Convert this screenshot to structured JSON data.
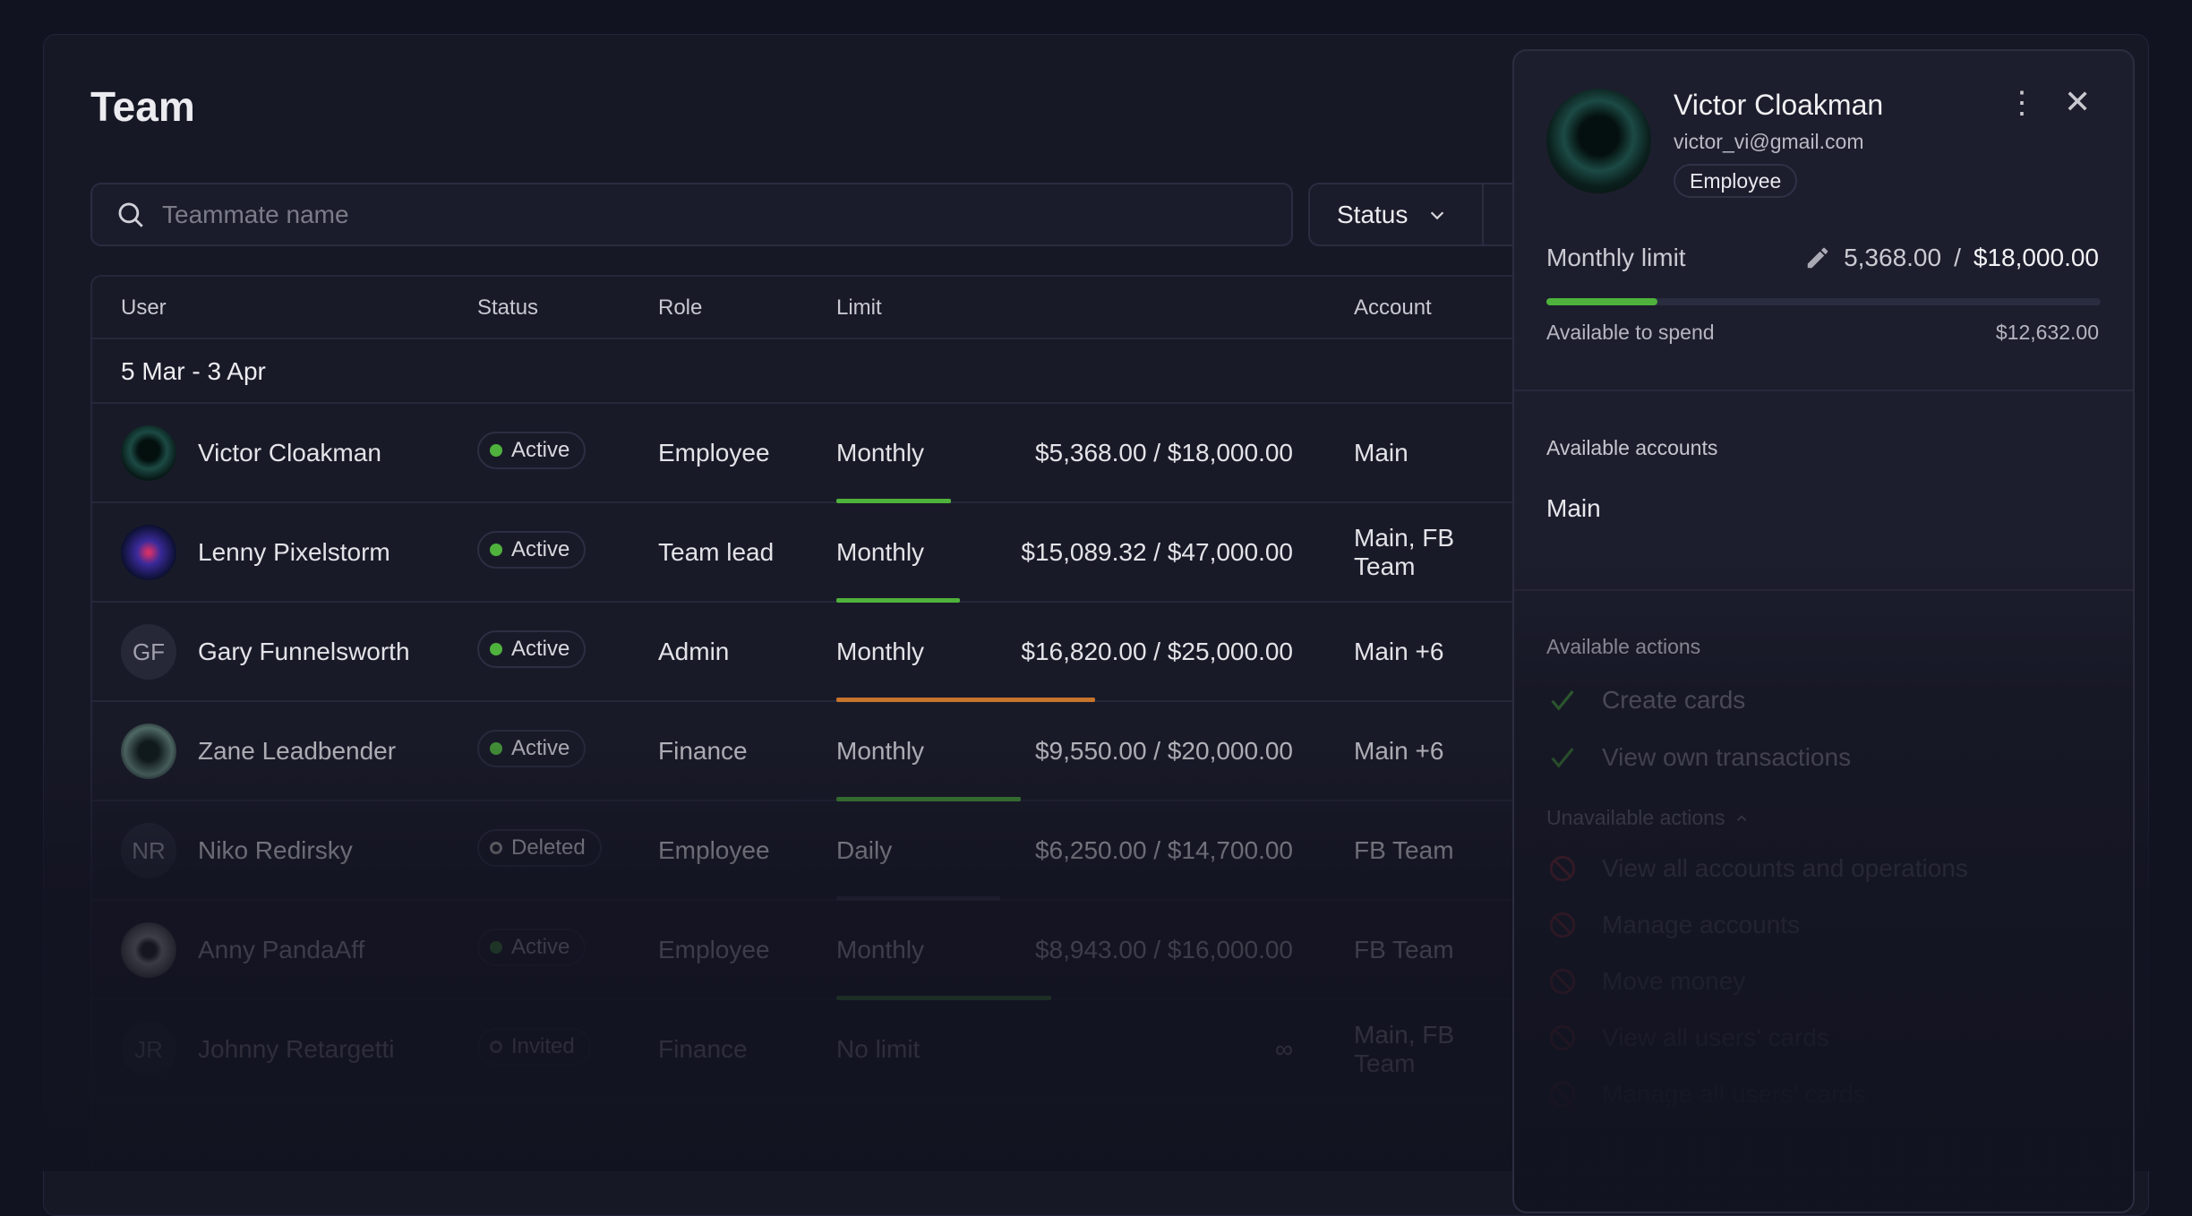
{
  "page": {
    "title": "Team"
  },
  "search": {
    "placeholder": "Teammate name",
    "value": ""
  },
  "filters": {
    "status_label": "Status"
  },
  "table": {
    "columns": [
      "User",
      "Status",
      "Role",
      "Limit",
      "Account"
    ],
    "period": "5 Mar - 3 Apr",
    "rows": [
      {
        "name": "Victor Cloakman",
        "initials": "",
        "avatar": "hooded-figure",
        "status": "Active",
        "role": "Employee",
        "period": "Monthly",
        "amount": "$5,368.00 / $18,000.00",
        "spent_ratio": 0.298,
        "account": "Main",
        "bar_color": "#4fb23c"
      },
      {
        "name": "Lenny Pixelstorm",
        "initials": "",
        "avatar": "neon-figure",
        "status": "Active",
        "role": "Team lead",
        "period": "Monthly",
        "amount": "$15,089.32 / $47,000.00",
        "spent_ratio": 0.321,
        "account": "Main, FB Team",
        "bar_color": "#4fb23c"
      },
      {
        "name": "Gary Funnelsworth",
        "initials": "GF",
        "avatar": "",
        "status": "Active",
        "role": "Admin",
        "period": "Monthly",
        "amount": "$16,820.00 / $25,000.00",
        "spent_ratio": 0.673,
        "account": "Main +6",
        "bar_color": "#c7742c"
      },
      {
        "name": "Zane Leadbender",
        "initials": "",
        "avatar": "chart-figure",
        "status": "Active",
        "role": "Finance",
        "period": "Monthly",
        "amount": "$9,550.00 / $20,000.00",
        "spent_ratio": 0.478,
        "account": "Main +6",
        "bar_color": "#4fb23c"
      },
      {
        "name": "Niko Redirsky",
        "initials": "NR",
        "avatar": "",
        "status": "Deleted",
        "role": "Employee",
        "period": "Daily",
        "amount": "$6,250.00 / $14,700.00",
        "spent_ratio": 0.425,
        "account": "FB Team",
        "bar_color": "#3a3c55"
      },
      {
        "name": "Anny PandaAff",
        "initials": "",
        "avatar": "panda",
        "status": "Active",
        "role": "Employee",
        "period": "Monthly",
        "amount": "$8,943.00 / $16,000.00",
        "spent_ratio": 0.559,
        "account": "FB Team",
        "bar_color": "#4fb23c"
      },
      {
        "name": "Johnny Retargetti",
        "initials": "JR",
        "avatar": "",
        "status": "Invited",
        "role": "Finance",
        "period": "No limit",
        "amount": "∞",
        "spent_ratio": null,
        "account": "Main, FB Team",
        "bar_color": ""
      }
    ]
  },
  "status_colors": {
    "Active": "#4fb23c",
    "Deleted": "hollow",
    "Invited": "hollow"
  },
  "panel": {
    "name": "Victor Cloakman",
    "email": "victor_vi@gmail.com",
    "role": "Employee",
    "limit_label": "Monthly limit",
    "limit_spent": "5,368.00",
    "limit_sep": "/",
    "limit_total": "$18,000.00",
    "spent_ratio": 0.298,
    "available_label": "Available to spend",
    "available_value": "$12,632.00",
    "accounts_title": "Available accounts",
    "accounts": [
      "Main"
    ],
    "actions_title": "Available actions",
    "actions": [
      "Create cards",
      "View own transactions"
    ],
    "unavailable_title": "Unavailable actions",
    "unavailable": [
      "View all accounts and operations",
      "Manage accounts",
      "Move money",
      "View all users' cards",
      "Manage all users' cards"
    ]
  },
  "colors": {
    "accent_green": "#4fb23c",
    "warning_orange": "#c7742c",
    "danger_red": "#b0303a"
  }
}
